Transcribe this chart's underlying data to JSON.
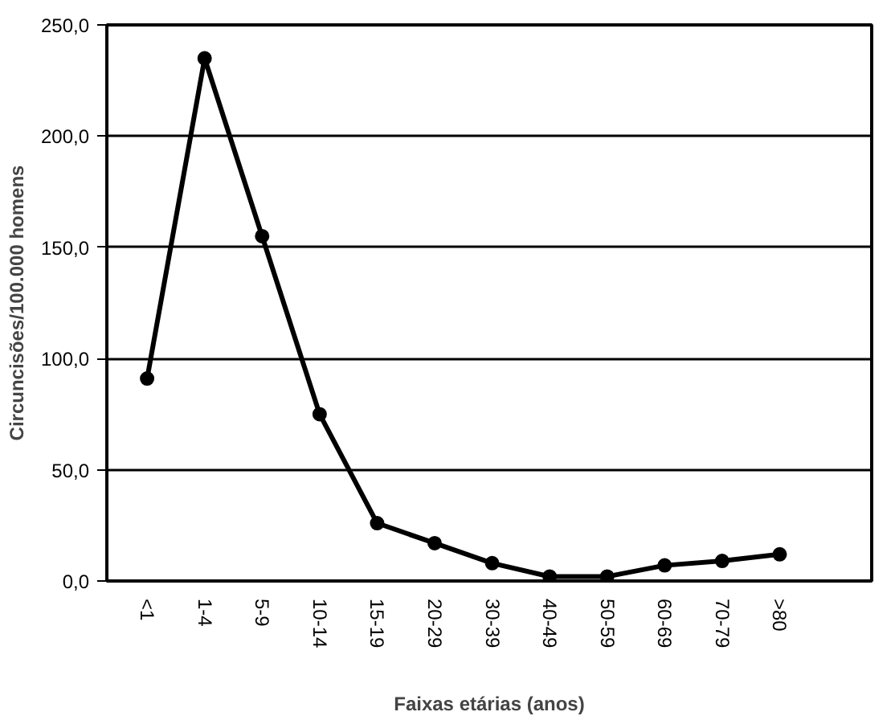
{
  "chart_data": {
    "type": "line",
    "xlabel": "Faixas etárias (anos)",
    "ylabel": "Circuncisões/100.000 homens",
    "categories": [
      "<1",
      "1-4",
      "5-9",
      "10-14",
      "15-19",
      "20-29",
      "30-39",
      "40-49",
      "50-59",
      "60-69",
      "70-79",
      ">80"
    ],
    "series": [
      {
        "color": "#000000",
        "values": [
          91,
          235,
          155,
          75,
          26,
          17,
          8,
          2,
          2,
          7,
          9,
          12
        ]
      }
    ],
    "ylim": [
      0,
      250
    ],
    "yticks": [
      {
        "value": 0,
        "label": "0,0"
      },
      {
        "value": 50,
        "label": "50,0"
      },
      {
        "value": 100,
        "label": "100,0"
      },
      {
        "value": 150,
        "label": "150,0"
      },
      {
        "value": 200,
        "label": "200,0"
      },
      {
        "value": 250,
        "label": "250,0"
      }
    ],
    "grid": "y",
    "marker": "circle",
    "line_style": "solid"
  }
}
